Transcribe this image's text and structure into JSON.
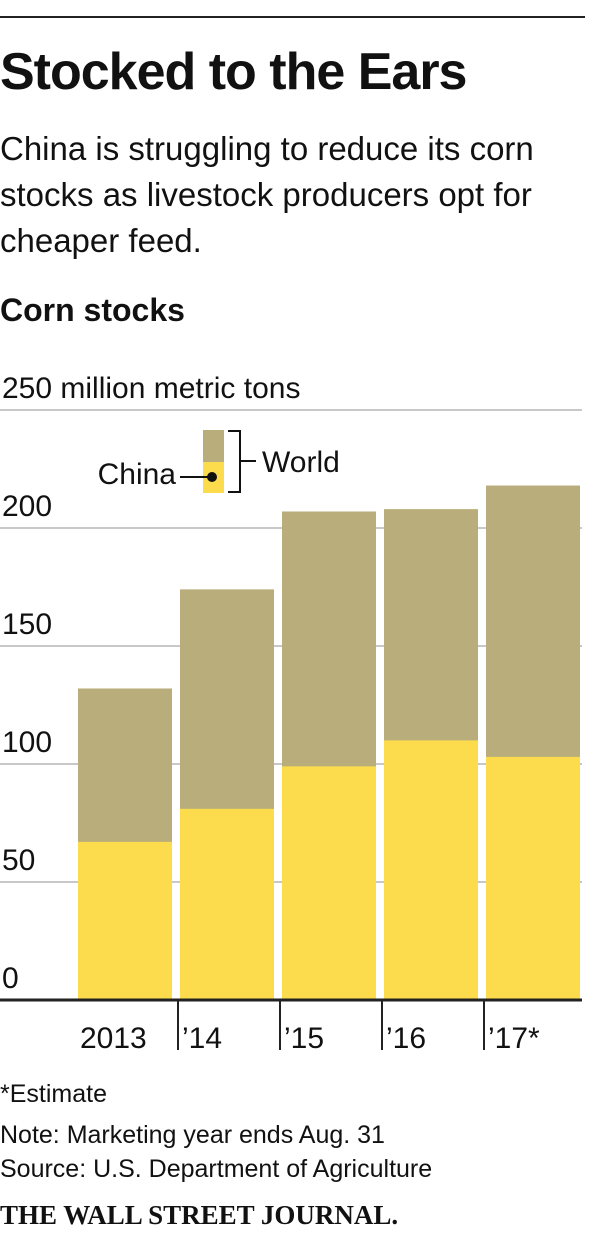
{
  "chart_data": {
    "type": "bar",
    "title": "Stocked to the Ears",
    "subtitle": "China is struggling to reduce its corn stocks as livestock producers opt for cheaper feed.",
    "value_label": "Corn stocks",
    "categories": [
      "2013",
      "’14",
      "’15",
      "’16",
      "’17*"
    ],
    "series": [
      {
        "name": "World",
        "color": "#b9ae7b",
        "values": [
          132,
          174,
          207,
          208,
          218
        ]
      },
      {
        "name": "China",
        "color": "#fcdc4c",
        "values": [
          67,
          81,
          99,
          110,
          103
        ]
      }
    ],
    "ylim": [
      0,
      250
    ],
    "yticks": [
      0,
      50,
      100,
      150,
      200,
      {
        "value": 250,
        "label": "250 million metric tons"
      }
    ],
    "grid": true,
    "footnote": "*Estimate",
    "note": "Note: Marketing year ends Aug. 31",
    "source": "Source: U.S. Department of Agriculture",
    "publisher": "THE WALL STREET JOURNAL."
  }
}
